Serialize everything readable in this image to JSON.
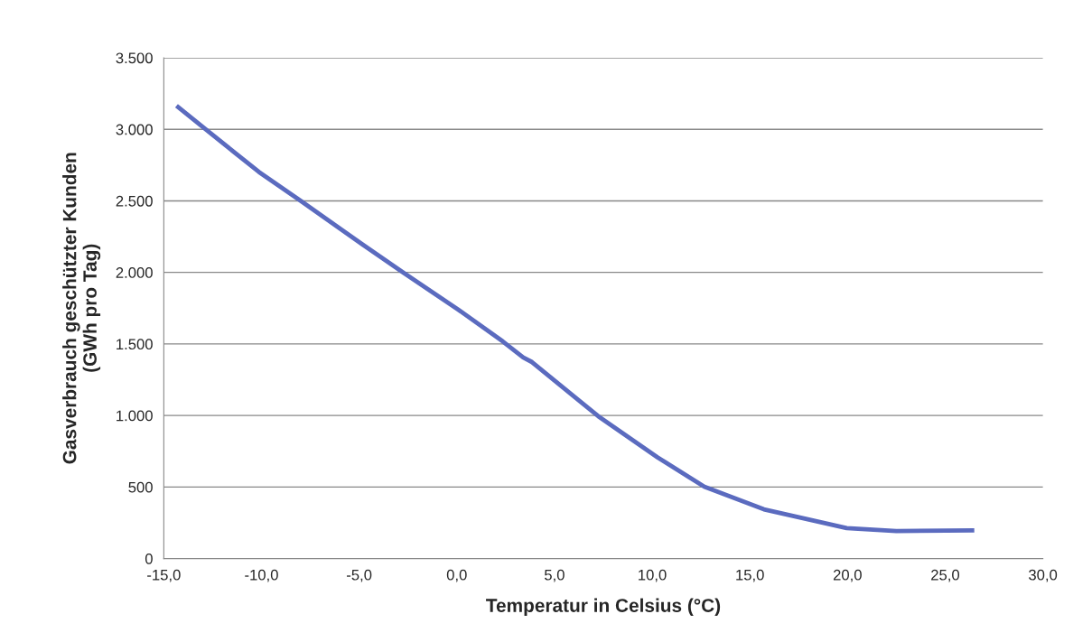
{
  "chart_data": {
    "type": "line",
    "xlabel": "Temperatur in Celsius (°C)",
    "ylabel": "Gasverbrauch geschützter Kunden\n(GWh pro Tag)",
    "series": [
      {
        "color": "#5b6bbf",
        "x": [
          -14.35,
          -12.86,
          -10.13,
          -8.02,
          -4.86,
          -2.75,
          0.06,
          2.35,
          3.4,
          3.85,
          6.23,
          7.24,
          10.29,
          12.67,
          15.72,
          17.92,
          19.96,
          22.5,
          26.49
        ],
        "values": [
          3164,
          3000,
          2702,
          2503,
          2198,
          1999,
          1741,
          1518,
          1405,
          1373,
          1107,
          995,
          706,
          502,
          344,
          276,
          213,
          192,
          197
        ]
      }
    ],
    "xlim": [
      -15,
      30
    ],
    "xticks": [
      {
        "value": -15,
        "label": "-15,0"
      },
      {
        "value": -10,
        "label": "-10,0"
      },
      {
        "value": -5,
        "label": "-5,0"
      },
      {
        "value": 0,
        "label": "0,0"
      },
      {
        "value": 5,
        "label": "5,0"
      },
      {
        "value": 10,
        "label": "10,0"
      },
      {
        "value": 15,
        "label": "15,0"
      },
      {
        "value": 20,
        "label": "20,0"
      },
      {
        "value": 25,
        "label": "25,0"
      },
      {
        "value": 30,
        "label": "30,0"
      }
    ],
    "ylim": [
      0,
      3500
    ],
    "yticks": [
      0,
      500,
      {
        "value": 1000,
        "label": "1.000"
      },
      {
        "value": 1500,
        "label": "1.500"
      },
      {
        "value": 2000,
        "label": "2.000"
      },
      {
        "value": 2500,
        "label": "2.500"
      },
      {
        "value": 3000,
        "label": "3.000"
      },
      {
        "value": 3500,
        "label": "3.500"
      }
    ],
    "grid": "y",
    "marker": "none",
    "line_style": "solid",
    "legend": false
  }
}
